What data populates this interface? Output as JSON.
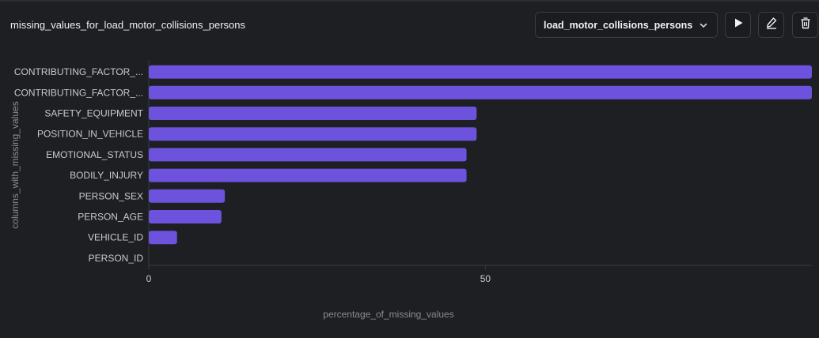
{
  "header": {
    "title": "missing_values_for_load_motor_collisions_persons",
    "select_value": "load_motor_collisions_persons",
    "run_icon": "play-icon",
    "edit_icon": "pencil-icon",
    "delete_icon": "trash-icon"
  },
  "colors": {
    "bar": "#6c52dc",
    "background": "#1e1f23"
  },
  "chart_data": {
    "type": "bar",
    "orientation": "horizontal",
    "title": "",
    "xlabel": "percentage_of_missing_values",
    "ylabel": "columns_with_missing_values",
    "categories": [
      "CONTRIBUTING_FACTOR_...",
      "CONTRIBUTING_FACTOR_...",
      "SAFETY_EQUIPMENT",
      "POSITION_IN_VEHICLE",
      "EMOTIONAL_STATUS",
      "BODILY_INJURY",
      "PERSON_SEX",
      "PERSON_AGE",
      "VEHICLE_ID",
      "PERSON_ID"
    ],
    "values": [
      98.5,
      98.5,
      48.7,
      48.7,
      47.2,
      47.2,
      11.3,
      10.8,
      4.2,
      0
    ],
    "xlim": [
      0,
      98.5
    ],
    "xticks": [
      0,
      50
    ],
    "grid": false
  }
}
